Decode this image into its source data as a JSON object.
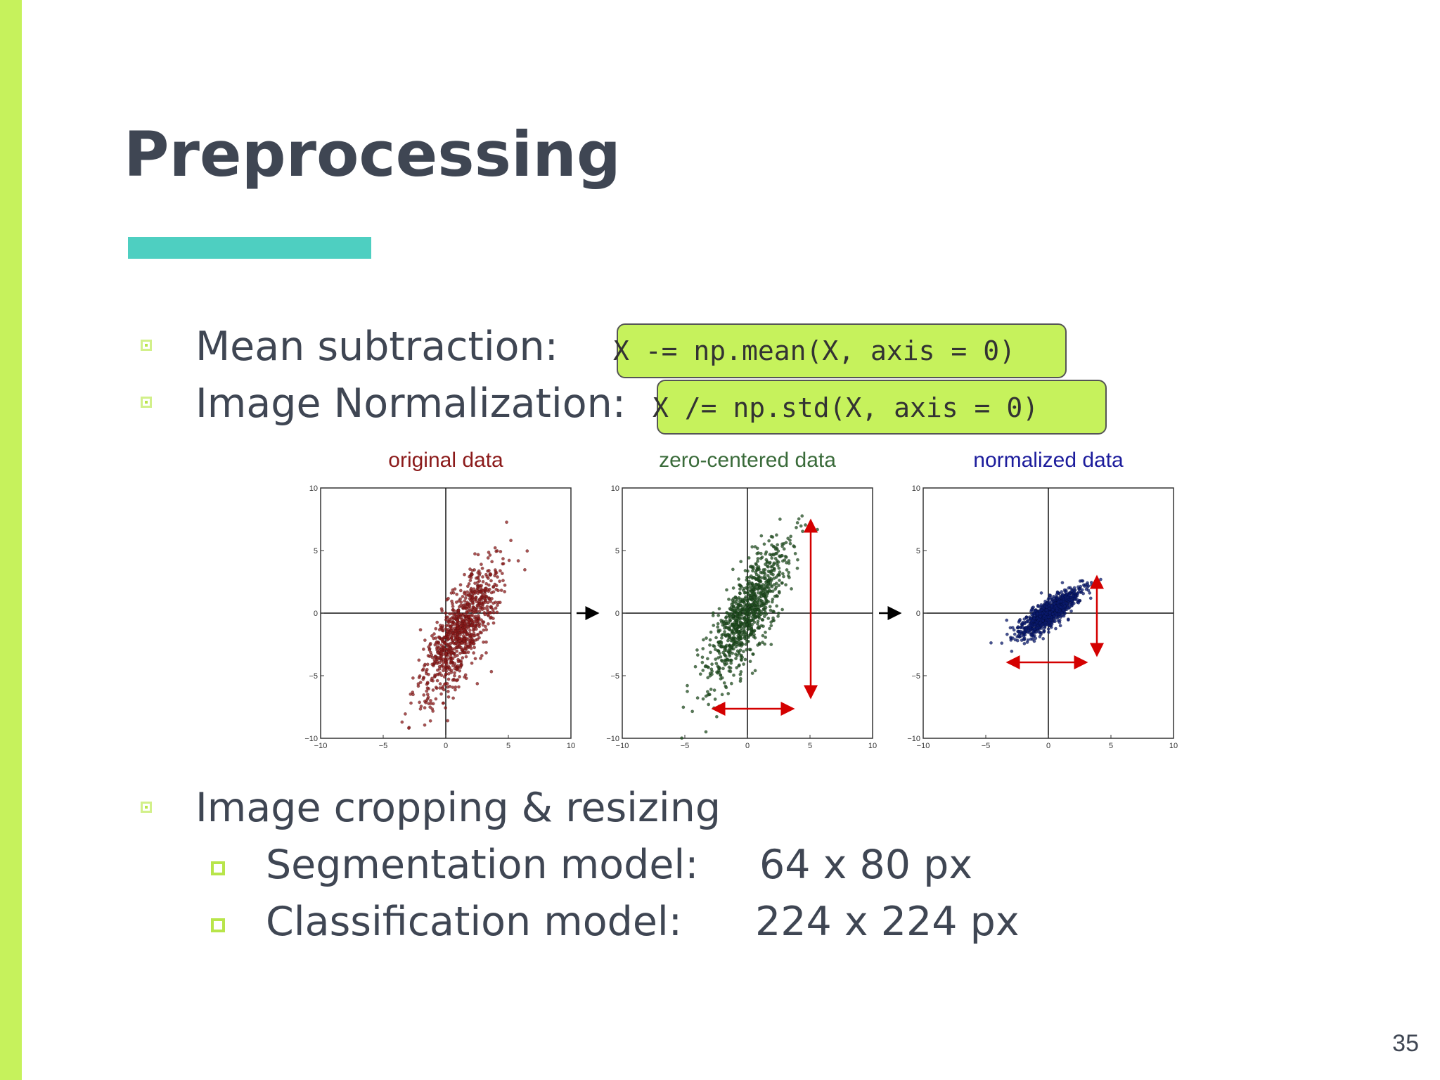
{
  "slide": {
    "title": "Preprocessing",
    "page_number": "35",
    "accent_colors": {
      "left_bar": "#c6f25c",
      "title_rule": "#4ecfc1",
      "code_box": "#c6f25c"
    }
  },
  "bullets": [
    {
      "label": "Mean subtraction:",
      "code": "X -= np.mean(X, axis = 0)"
    },
    {
      "label": "Image Normalization:",
      "code": "X /= np.std(X, axis = 0)"
    },
    {
      "label": "Image cropping & resizing"
    }
  ],
  "sub_bullets": [
    {
      "label": "Segmentation model:",
      "value": "64 x 80 px"
    },
    {
      "label": "Classification model:",
      "value": "224 x 224 px"
    }
  ],
  "chart_data": [
    {
      "type": "scatter",
      "title": "original data",
      "title_color": "#8b1a1a",
      "point_color": "#8b1a1a",
      "xlim": [
        -10,
        10
      ],
      "ylim": [
        -10,
        10
      ],
      "xticks": [
        "−10",
        "−5",
        "0",
        "5",
        "10"
      ],
      "yticks": [
        "10",
        "5",
        "0",
        "−5",
        "−10"
      ],
      "center": [
        1.2,
        -1.5
      ],
      "spread_major": 3.0,
      "spread_minor": 0.9,
      "angle_deg": 63
    },
    {
      "type": "scatter",
      "title": "zero-centered data",
      "title_color": "#3a6b3a",
      "point_color": "#1f4d1f",
      "xlim": [
        -10,
        10
      ],
      "ylim": [
        -10,
        10
      ],
      "xticks": [
        "−10",
        "−5",
        "0",
        "5",
        "10"
      ],
      "yticks": [
        "10",
        "5",
        "0",
        "−5",
        "−10"
      ],
      "center": [
        0,
        0
      ],
      "spread_major": 3.0,
      "spread_minor": 0.9,
      "angle_deg": 63
    },
    {
      "type": "scatter",
      "title": "normalized data",
      "title_color": "#1c1c9c",
      "point_color": "#0a1a6e",
      "xlim": [
        -10,
        10
      ],
      "ylim": [
        -10,
        10
      ],
      "xticks": [
        "−10",
        "−5",
        "0",
        "5",
        "10"
      ],
      "yticks": [
        "10",
        "5",
        "0",
        "−5",
        "−10"
      ],
      "center": [
        0,
        0
      ],
      "spread_major": 1.5,
      "spread_minor": 0.45,
      "angle_deg": 38
    }
  ]
}
